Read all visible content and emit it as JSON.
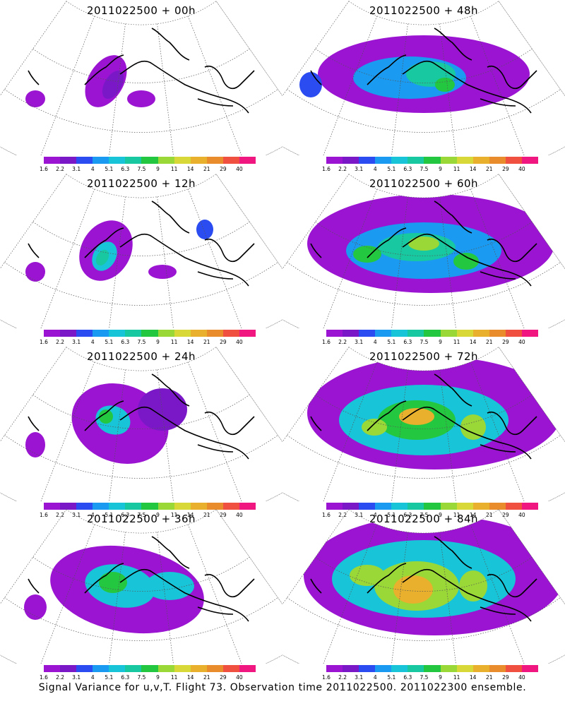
{
  "panels": [
    {
      "title": "2011022500 + 00h",
      "forecast_hour": 0
    },
    {
      "title": "2011022500 + 48h",
      "forecast_hour": 48
    },
    {
      "title": "2011022500 + 12h",
      "forecast_hour": 12
    },
    {
      "title": "2011022500 + 60h",
      "forecast_hour": 60
    },
    {
      "title": "2011022500 + 24h",
      "forecast_hour": 24
    },
    {
      "title": "2011022500 + 72h",
      "forecast_hour": 72
    },
    {
      "title": "2011022500 + 36h",
      "forecast_hour": 36
    },
    {
      "title": "2011022500 + 84h",
      "forecast_hour": 84
    }
  ],
  "colorbar": {
    "labels": [
      "1.6",
      "2.2",
      "3.1",
      "4",
      "5.1",
      "6.3",
      "7.5",
      "9",
      "11",
      "14",
      "21",
      "29",
      "40"
    ],
    "colors": [
      "#9a14d2",
      "#7a18c8",
      "#2a4cf0",
      "#1a9af0",
      "#18c4d8",
      "#18c8a0",
      "#24c840",
      "#9ad838",
      "#d8d838",
      "#e8b02c",
      "#e88c2c",
      "#f05040",
      "#f01880"
    ]
  },
  "footer": "Signal Variance for u,v,T. Flight 73. Observation time 2011022500. 2011022300 ensemble."
}
